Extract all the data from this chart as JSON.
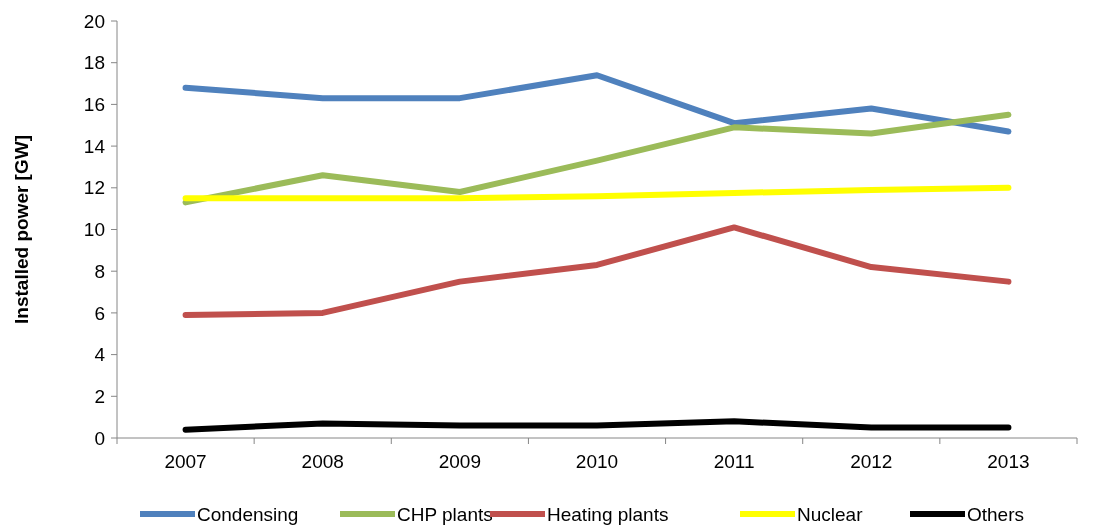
{
  "chart_data": {
    "type": "line",
    "ylabel": "Installed power [GW]",
    "categories": [
      "2007",
      "2008",
      "2009",
      "2010",
      "2011",
      "2012",
      "2013"
    ],
    "ylim": [
      0,
      20
    ],
    "yticks": [
      0,
      2,
      4,
      6,
      8,
      10,
      12,
      14,
      16,
      18,
      20
    ],
    "grid": false,
    "legend": "bottom",
    "marker": "none",
    "line_style": "solid",
    "series": [
      {
        "name": "Condensing",
        "color": "#4f81bd",
        "values": [
          16.8,
          16.3,
          16.3,
          17.4,
          15.1,
          15.8,
          14.7
        ]
      },
      {
        "name": "CHP plants",
        "color": "#9bbb59",
        "values": [
          11.3,
          12.6,
          11.8,
          13.3,
          14.9,
          14.6,
          15.5
        ]
      },
      {
        "name": "Heating plants",
        "color": "#c0504d",
        "values": [
          5.9,
          6.0,
          7.5,
          8.3,
          10.1,
          8.2,
          7.5
        ]
      },
      {
        "name": "Nuclear",
        "color": "#ffff00",
        "values": [
          11.5,
          11.5,
          11.5,
          11.6,
          11.75,
          11.9,
          12.0
        ]
      },
      {
        "name": "Others",
        "color": "#000000",
        "values": [
          0.4,
          0.7,
          0.6,
          0.6,
          0.8,
          0.5,
          0.5
        ]
      }
    ]
  }
}
